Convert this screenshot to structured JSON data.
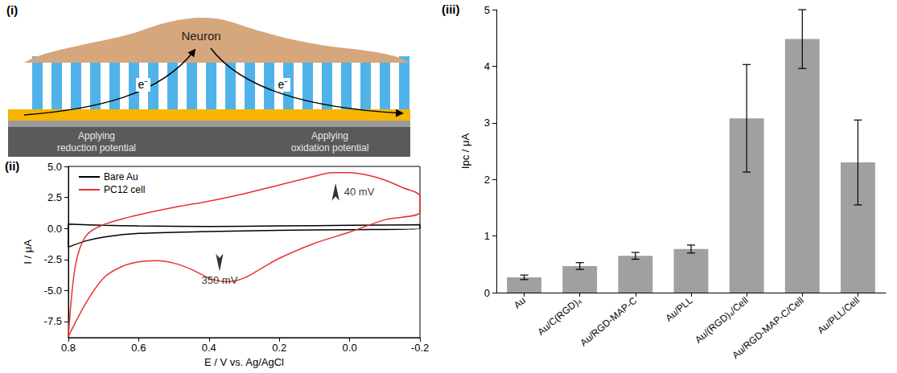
{
  "diagram": {
    "panel": "(i)",
    "cell_label": "Neuron",
    "electron_labels": [
      "e⁻",
      "e⁻"
    ],
    "left_label": "Applying reduction potential",
    "right_label": "Applying oxidation potential"
  },
  "chart_data": [
    {
      "panel": "(ii)",
      "type": "line",
      "x_label": "E / V vs. Ag/AgCl",
      "y_label": "I / μA",
      "xlim": [
        0.8,
        -0.2
      ],
      "xticks": [
        0.8,
        0.6,
        0.4,
        0.2,
        {
          "value": 0,
          "label": "0.0"
        },
        -0.2
      ],
      "ylim": [
        -8.8,
        5
      ],
      "yticks": [
        -7.5,
        {
          "value": -5,
          "label": "-5.0"
        },
        -2.5,
        {
          "value": 0,
          "label": "0.0"
        },
        2.5,
        {
          "value": 5,
          "label": "5.0"
        }
      ],
      "grid": false,
      "legend": "upper left",
      "series": [
        {
          "name": "Bare Au",
          "color": "#000000",
          "x": [
            -0.2,
            0.0,
            0.2,
            0.4,
            0.6,
            0.7,
            0.8,
            0.8,
            0.75,
            0.7,
            0.6,
            0.4,
            0.2,
            0.0,
            -0.2,
            -0.2
          ],
          "values": [
            0.3,
            0.25,
            0.2,
            0.15,
            0.2,
            0.25,
            0.35,
            -1.5,
            -1.0,
            -0.7,
            -0.4,
            -0.25,
            -0.15,
            -0.1,
            0.0,
            0.3
          ]
        },
        {
          "name": "PC12 cell",
          "color": "#e8312f",
          "x": [
            0.8,
            0.75,
            0.7,
            0.65,
            0.6,
            0.55,
            0.5,
            0.45,
            0.4,
            0.35,
            0.3,
            0.25,
            0.2,
            0.1,
            0.0,
            -0.1,
            -0.2,
            -0.2,
            -0.15,
            -0.1,
            -0.05,
            0.0,
            0.05,
            0.1,
            0.2,
            0.3,
            0.4,
            0.5,
            0.6,
            0.7,
            0.75,
            0.78,
            0.8
          ],
          "values": [
            -8.7,
            -6.0,
            -4.0,
            -3.1,
            -2.7,
            -2.6,
            -2.8,
            -3.3,
            -4.0,
            -4.3,
            -4.0,
            -3.2,
            -2.4,
            -1.2,
            -0.3,
            0.7,
            1.3,
            2.6,
            3.3,
            3.9,
            4.3,
            4.5,
            4.5,
            4.2,
            3.5,
            2.8,
            2.2,
            1.7,
            1.1,
            0.3,
            -0.6,
            -3.0,
            -8.7
          ]
        }
      ],
      "annotations": [
        {
          "text": "40 mV",
          "x": 0.04,
          "y": 4.5
        },
        {
          "text": "350 mV",
          "x": 0.37,
          "y": -4.3
        }
      ]
    },
    {
      "panel": "(iii)",
      "type": "bar",
      "y_label": "Ipc / μA",
      "categories": [
        "Au",
        "Au/C(RGD)₄",
        "Au/RGD-MAP-C",
        "Au/PLL",
        "Au/(RGD)₄/Cell",
        "Au/RGD-MAP-C/Cell",
        "Au/PLL/Cell"
      ],
      "values": [
        0.27,
        0.47,
        0.65,
        0.77,
        3.08,
        4.48,
        2.3
      ],
      "errors": [
        0.04,
        0.06,
        0.06,
        0.07,
        0.95,
        0.52,
        0.75
      ],
      "color": "#a0a0a0",
      "ylim": [
        0,
        5
      ],
      "yticks": [
        0,
        1,
        2,
        3,
        4,
        5
      ],
      "grid": false
    }
  ]
}
